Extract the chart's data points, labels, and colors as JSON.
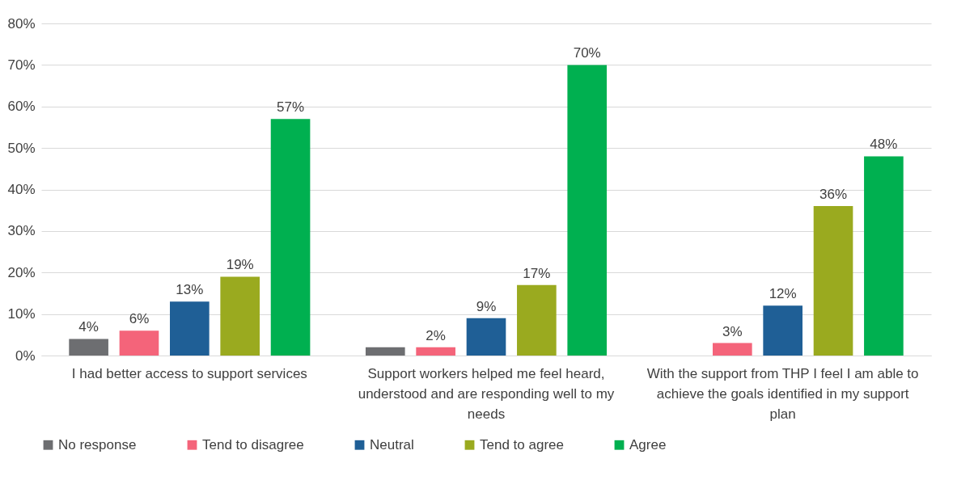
{
  "chart_data": {
    "type": "bar",
    "categories": [
      "I had better access to support services",
      "Support workers helped me feel heard, understood and are responding well to my needs",
      "With the support from THP I feel I am able to achieve the goals identified in my support plan"
    ],
    "series": [
      {
        "name": "No response",
        "color": "#6d6e71",
        "values": [
          4,
          2,
          null
        ],
        "value_labels": [
          "4%",
          null,
          null
        ]
      },
      {
        "name": "Tend to disagree",
        "color": "#f4647a",
        "values": [
          6,
          2,
          3
        ],
        "value_labels": [
          "6%",
          "2%",
          "3%"
        ]
      },
      {
        "name": "Neutral",
        "color": "#1f5f96",
        "values": [
          13,
          9,
          12
        ],
        "value_labels": [
          "13%",
          "9%",
          "12%"
        ]
      },
      {
        "name": "Tend to agree",
        "color": "#9aaa1f",
        "values": [
          19,
          17,
          36
        ],
        "value_labels": [
          "19%",
          "17%",
          "36%"
        ]
      },
      {
        "name": "Agree",
        "color": "#00b050",
        "values": [
          57,
          70,
          48
        ],
        "value_labels": [
          "57%",
          "70%",
          "48%"
        ]
      }
    ],
    "ylim": [
      0,
      80
    ],
    "yticks": [
      {
        "value": 0,
        "label": "0%"
      },
      {
        "value": 10,
        "label": "10%"
      },
      {
        "value": 20,
        "label": "20%"
      },
      {
        "value": 30,
        "label": "30%"
      },
      {
        "value": 40,
        "label": "40%"
      },
      {
        "value": 50,
        "label": "50%"
      },
      {
        "value": 60,
        "label": "60%"
      },
      {
        "value": 70,
        "label": "70%"
      },
      {
        "value": 80,
        "label": "80%"
      }
    ],
    "grid": "y",
    "legend": "bottom"
  }
}
